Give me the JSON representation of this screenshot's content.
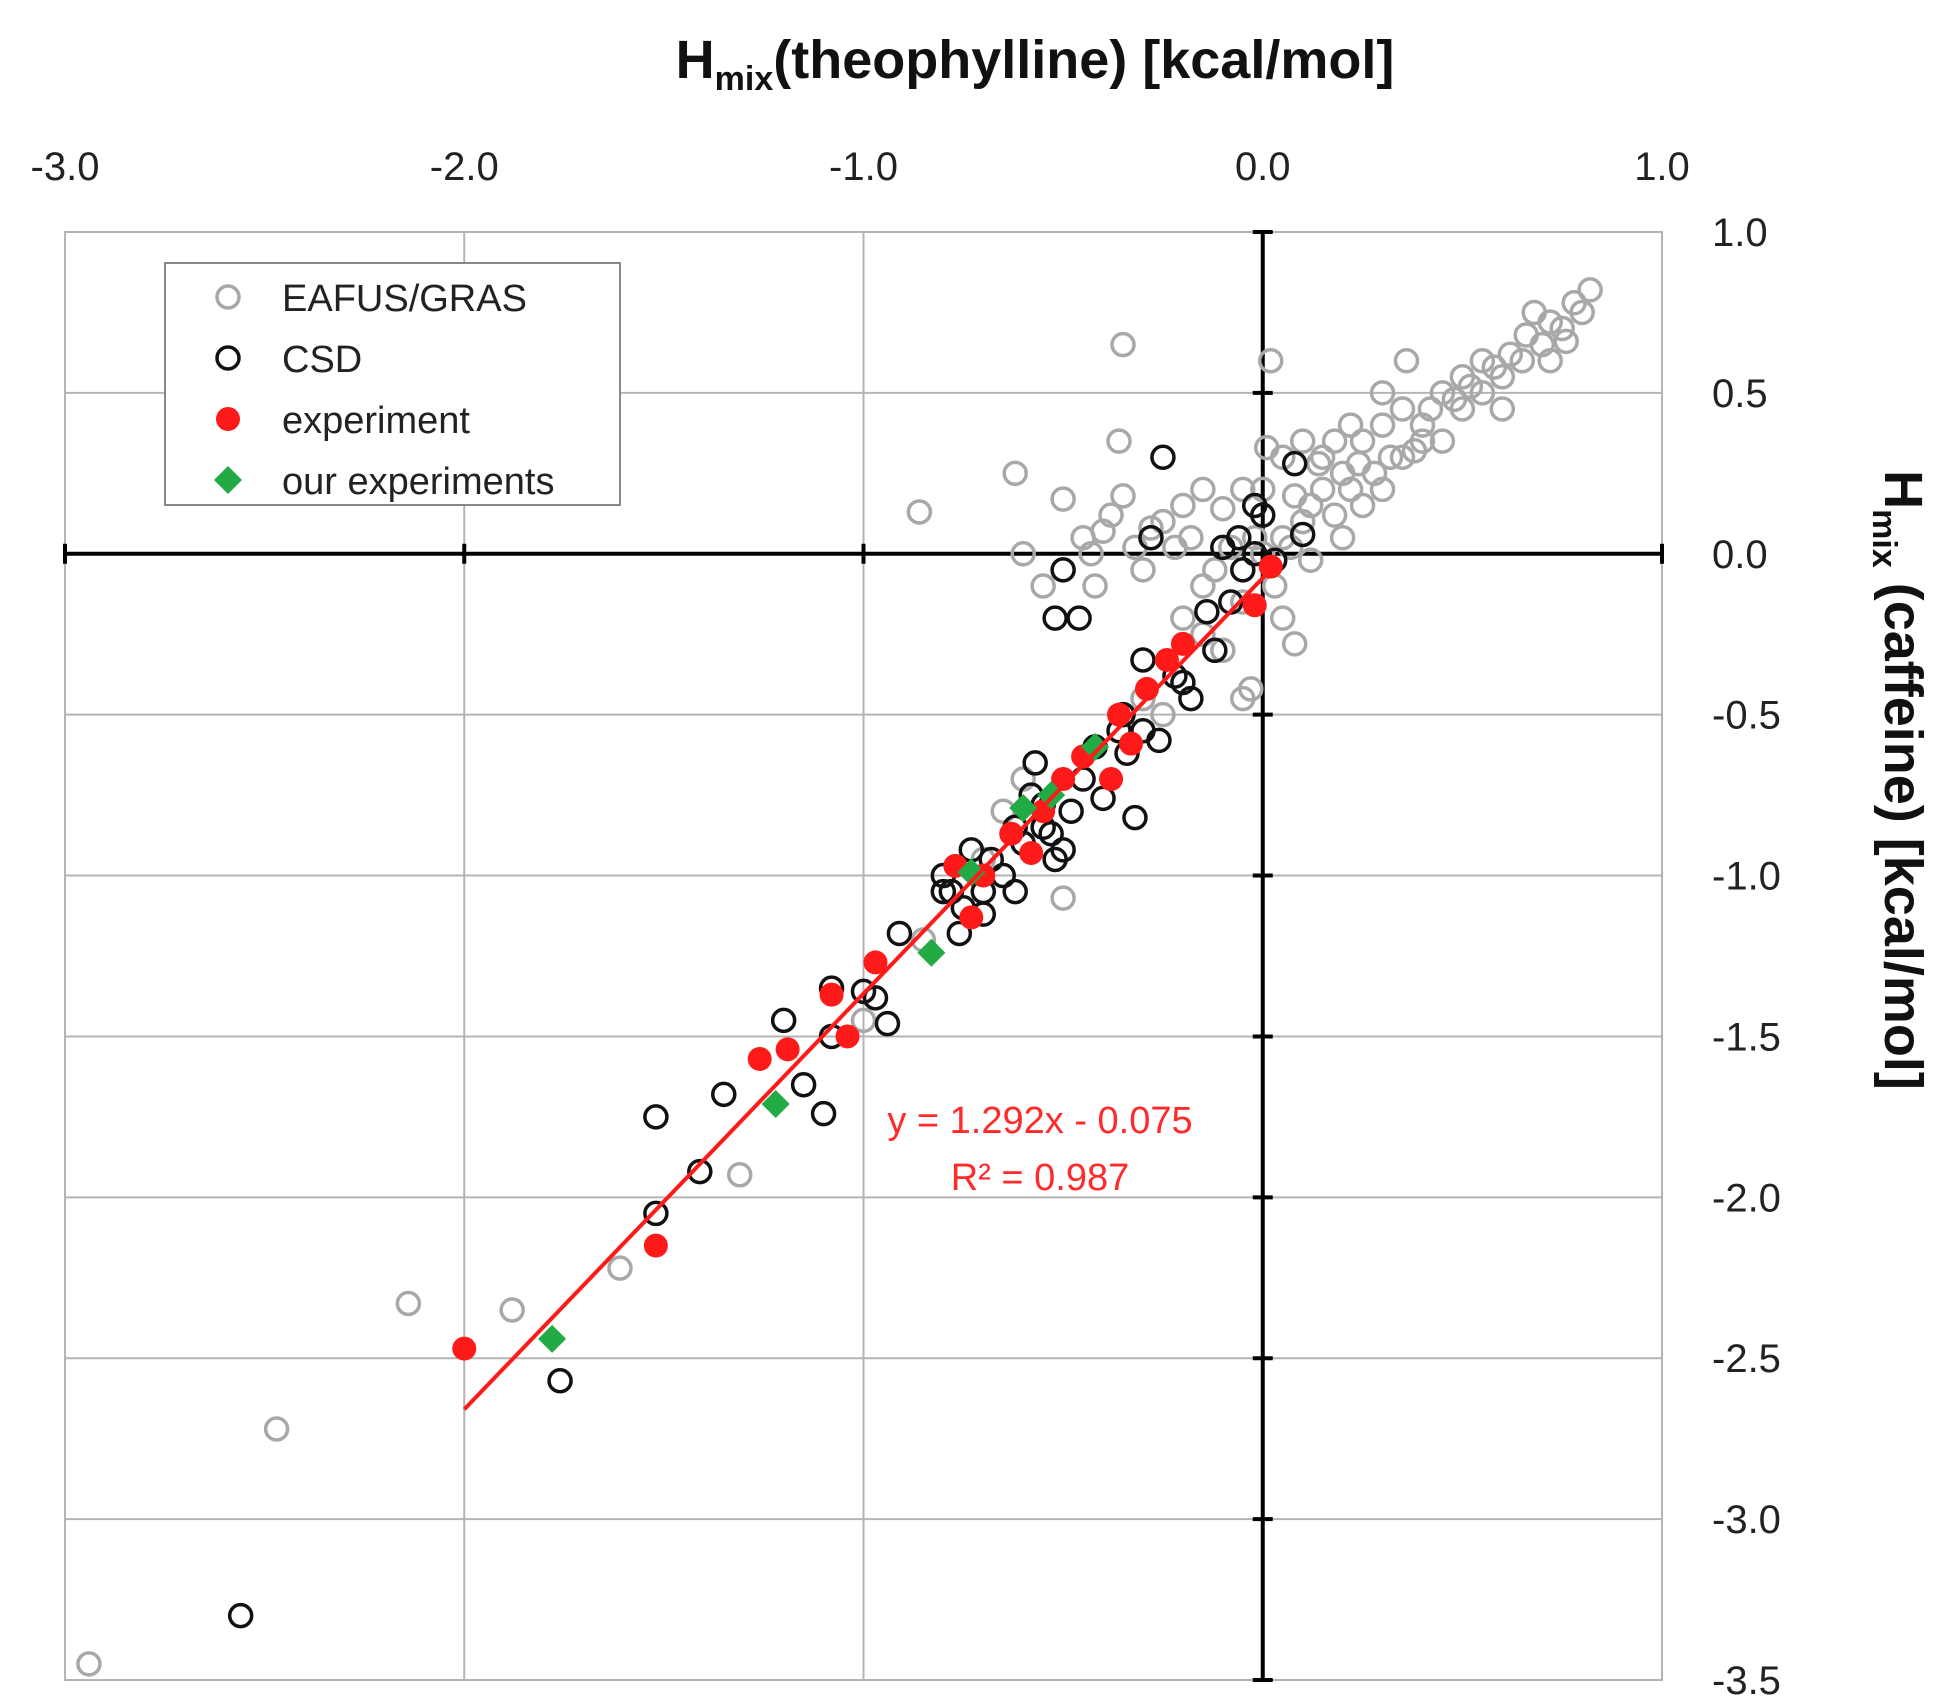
{
  "chart_data": {
    "type": "scatter",
    "title": "",
    "xlabel": {
      "main": "H",
      "sub": "mix",
      "rest": "(theophylline) [kcal/mol]"
    },
    "ylabel": {
      "main": "H",
      "sub": "mix",
      "rest": " (caffeine)  [kcal/mol]"
    },
    "xlim": [
      -3.0,
      1.0
    ],
    "ylim": [
      -3.5,
      1.0
    ],
    "x_ticks": [
      "-3.0",
      "-2.0",
      "-1.0",
      "0.0",
      "1.0"
    ],
    "y_ticks": [
      "1.0",
      "0.5",
      "0.0",
      "-0.5",
      "-1.0",
      "-1.5",
      "-2.0",
      "-2.5",
      "-3.0",
      "-3.5"
    ],
    "x_axis_position": "top",
    "y_axis_position": "right",
    "grid": true,
    "legend_position": "top-left",
    "series": [
      {
        "name": "EAFUS/GRAS",
        "marker": "open-circle",
        "color": "#a8a8a8",
        "points": [
          [
            -2.94,
            -3.45
          ],
          [
            -2.47,
            -2.72
          ],
          [
            -2.14,
            -2.33
          ],
          [
            -1.88,
            -2.35
          ],
          [
            -1.61,
            -2.22
          ],
          [
            -1.31,
            -1.93
          ],
          [
            -0.86,
            0.13
          ],
          [
            -0.62,
            0.25
          ],
          [
            -0.6,
            0.0
          ],
          [
            -0.5,
            0.17
          ],
          [
            -0.5,
            -1.07
          ],
          [
            -0.43,
            0.0
          ],
          [
            -0.42,
            -0.1
          ],
          [
            -0.4,
            0.07
          ],
          [
            -0.35,
            0.65
          ],
          [
            -0.36,
            0.35
          ],
          [
            -0.35,
            0.18
          ],
          [
            -0.32,
            0.02
          ],
          [
            -0.3,
            -0.05
          ],
          [
            -0.25,
            0.1
          ],
          [
            -0.2,
            0.15
          ],
          [
            -0.15,
            0.2
          ],
          [
            -0.1,
            0.14
          ],
          [
            -0.05,
            0.2
          ],
          [
            0.02,
            0.6
          ],
          [
            0.01,
            0.33
          ],
          [
            0.0,
            0.2
          ],
          [
            -0.05,
            -0.15
          ],
          [
            -0.1,
            -0.3
          ],
          [
            -0.15,
            -0.25
          ],
          [
            -0.2,
            -0.2
          ],
          [
            -0.05,
            -0.45
          ],
          [
            -0.03,
            -0.42
          ],
          [
            0.05,
            -0.2
          ],
          [
            0.08,
            -0.28
          ],
          [
            -0.25,
            -0.5
          ],
          [
            -0.3,
            -0.45
          ],
          [
            -0.35,
            -0.5
          ],
          [
            0.05,
            0.3
          ],
          [
            0.1,
            0.35
          ],
          [
            0.15,
            0.3
          ],
          [
            0.2,
            0.25
          ],
          [
            0.25,
            0.35
          ],
          [
            0.3,
            0.4
          ],
          [
            0.35,
            0.45
          ],
          [
            0.4,
            0.4
          ],
          [
            0.45,
            0.5
          ],
          [
            0.5,
            0.55
          ],
          [
            0.55,
            0.6
          ],
          [
            0.6,
            0.55
          ],
          [
            0.65,
            0.6
          ],
          [
            0.7,
            0.65
          ],
          [
            0.75,
            0.7
          ],
          [
            0.8,
            0.75
          ],
          [
            0.82,
            0.82
          ],
          [
            0.72,
            0.72
          ],
          [
            0.68,
            0.75
          ],
          [
            0.78,
            0.78
          ],
          [
            0.36,
            0.6
          ],
          [
            0.3,
            0.5
          ],
          [
            0.22,
            0.4
          ],
          [
            0.15,
            0.2
          ],
          [
            0.1,
            0.1
          ],
          [
            0.05,
            0.05
          ],
          [
            0.12,
            -0.02
          ],
          [
            0.2,
            0.05
          ],
          [
            0.25,
            0.15
          ],
          [
            0.3,
            0.2
          ],
          [
            0.35,
            0.3
          ],
          [
            0.4,
            0.35
          ],
          [
            0.45,
            0.35
          ],
          [
            0.5,
            0.45
          ],
          [
            0.55,
            0.5
          ],
          [
            0.6,
            0.45
          ],
          [
            0.0,
            0.0
          ],
          [
            -0.02,
            0.05
          ],
          [
            -0.08,
            0.02
          ],
          [
            -0.12,
            -0.05
          ],
          [
            -0.15,
            -0.1
          ],
          [
            0.03,
            -0.1
          ],
          [
            0.07,
            0.02
          ],
          [
            0.12,
            0.15
          ],
          [
            0.18,
            0.12
          ],
          [
            0.22,
            0.2
          ],
          [
            0.28,
            0.25
          ],
          [
            0.32,
            0.3
          ],
          [
            0.38,
            0.32
          ],
          [
            0.42,
            0.45
          ],
          [
            0.48,
            0.48
          ],
          [
            0.52,
            0.52
          ],
          [
            0.58,
            0.58
          ],
          [
            0.62,
            0.62
          ],
          [
            0.66,
            0.68
          ],
          [
            0.72,
            0.6
          ],
          [
            0.76,
            0.66
          ],
          [
            0.08,
            0.18
          ],
          [
            0.14,
            0.28
          ],
          [
            0.18,
            0.35
          ],
          [
            0.24,
            0.28
          ],
          [
            -0.18,
            0.05
          ],
          [
            -0.22,
            0.02
          ],
          [
            -0.28,
            0.08
          ],
          [
            -0.38,
            0.12
          ],
          [
            -0.45,
            0.05
          ],
          [
            -0.55,
            -0.1
          ],
          [
            -0.6,
            -0.7
          ],
          [
            -0.65,
            -0.8
          ],
          [
            -1.0,
            -1.45
          ],
          [
            -0.85,
            -1.2
          ],
          [
            -0.7,
            -0.95
          ]
        ]
      },
      {
        "name": "CSD",
        "marker": "open-circle",
        "color": "#111111",
        "points": [
          [
            -2.56,
            -3.3
          ],
          [
            -1.76,
            -2.57
          ],
          [
            -1.52,
            -1.75
          ],
          [
            -1.52,
            -2.05
          ],
          [
            -1.41,
            -1.92
          ],
          [
            -1.35,
            -1.68
          ],
          [
            -1.2,
            -1.45
          ],
          [
            -1.15,
            -1.65
          ],
          [
            -1.1,
            -1.74
          ],
          [
            -1.08,
            -1.35
          ],
          [
            -1.08,
            -1.5
          ],
          [
            -1.0,
            -1.36
          ],
          [
            -0.97,
            -1.38
          ],
          [
            -0.94,
            -1.46
          ],
          [
            -0.91,
            -1.18
          ],
          [
            -0.8,
            -1.0
          ],
          [
            -0.78,
            -1.05
          ],
          [
            -0.76,
            -1.18
          ],
          [
            -0.75,
            -1.1
          ],
          [
            -0.73,
            -0.92
          ],
          [
            -0.7,
            -1.05
          ],
          [
            -0.7,
            -1.12
          ],
          [
            -0.68,
            -0.95
          ],
          [
            -0.65,
            -1.0
          ],
          [
            -0.6,
            -0.9
          ],
          [
            -0.58,
            -0.75
          ],
          [
            -0.57,
            -0.65
          ],
          [
            -0.55,
            -0.85
          ],
          [
            -0.53,
            -0.87
          ],
          [
            -0.52,
            -0.95
          ],
          [
            -0.5,
            -0.92
          ],
          [
            -0.48,
            -0.8
          ],
          [
            -0.45,
            -0.7
          ],
          [
            -0.42,
            -0.6
          ],
          [
            -0.4,
            -0.76
          ],
          [
            -0.36,
            -0.55
          ],
          [
            -0.34,
            -0.62
          ],
          [
            -0.32,
            -0.82
          ],
          [
            -0.3,
            -0.55
          ],
          [
            -0.26,
            -0.58
          ],
          [
            -0.2,
            -0.4
          ],
          [
            -0.18,
            -0.45
          ],
          [
            -0.12,
            -0.3
          ],
          [
            -0.08,
            -0.15
          ],
          [
            -0.05,
            -0.05
          ],
          [
            -0.02,
            0.0
          ],
          [
            0.0,
            0.12
          ],
          [
            0.03,
            -0.02
          ],
          [
            0.08,
            0.28
          ],
          [
            -0.25,
            0.3
          ],
          [
            -0.28,
            0.05
          ],
          [
            -0.5,
            -0.05
          ],
          [
            -0.52,
            -0.2
          ],
          [
            -0.46,
            -0.2
          ],
          [
            -0.3,
            -0.33
          ],
          [
            -0.1,
            0.02
          ],
          [
            -0.06,
            0.05
          ],
          [
            0.1,
            0.06
          ],
          [
            -0.02,
            0.15
          ],
          [
            -0.14,
            -0.18
          ],
          [
            -0.22,
            -0.38
          ],
          [
            -0.35,
            -0.5
          ],
          [
            -0.62,
            -1.05
          ],
          [
            -0.8,
            -1.05
          ],
          [
            -0.62,
            -0.85
          ],
          [
            -0.55,
            -0.78
          ]
        ]
      },
      {
        "name": "experiment",
        "marker": "filled-circle",
        "color": "#ff1a1a",
        "points": [
          [
            -2.0,
            -2.47
          ],
          [
            -1.52,
            -2.15
          ],
          [
            -1.26,
            -1.57
          ],
          [
            -1.19,
            -1.54
          ],
          [
            -1.08,
            -1.37
          ],
          [
            -1.04,
            -1.5
          ],
          [
            -0.97,
            -1.27
          ],
          [
            -0.77,
            -0.97
          ],
          [
            -0.73,
            -1.13
          ],
          [
            -0.63,
            -0.87
          ],
          [
            -0.58,
            -0.93
          ],
          [
            -0.55,
            -0.8
          ],
          [
            -0.5,
            -0.7
          ],
          [
            -0.45,
            -0.63
          ],
          [
            -0.38,
            -0.7
          ],
          [
            -0.36,
            -0.5
          ],
          [
            -0.33,
            -0.59
          ],
          [
            -0.29,
            -0.42
          ],
          [
            -0.24,
            -0.33
          ],
          [
            -0.2,
            -0.28
          ],
          [
            -0.02,
            -0.16
          ],
          [
            0.02,
            -0.04
          ],
          [
            -0.7,
            -1.0
          ]
        ]
      },
      {
        "name": "our experiments",
        "marker": "filled-diamond",
        "color": "#22aa44",
        "points": [
          [
            -1.78,
            -2.44
          ],
          [
            -1.22,
            -1.71
          ],
          [
            -0.83,
            -1.24
          ],
          [
            -0.73,
            -0.99
          ],
          [
            -0.6,
            -0.79
          ],
          [
            -0.53,
            -0.75
          ],
          [
            -0.42,
            -0.6
          ]
        ]
      }
    ],
    "trendline": {
      "slope": 1.292,
      "intercept": -0.075,
      "x_range": [
        -2.0,
        0.02
      ],
      "color": "#ff1a1a"
    },
    "annotation": {
      "equation": "y = 1.292x - 0.075",
      "r2": "R² = 0.987"
    }
  }
}
